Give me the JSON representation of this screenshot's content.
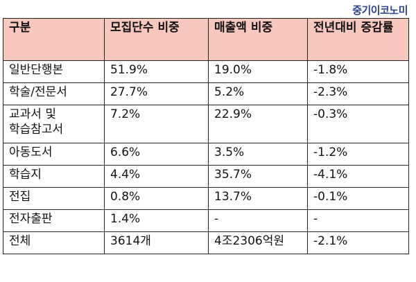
{
  "brand": "중기이코노미",
  "table": {
    "headers": [
      "구분",
      "모집단수 비중",
      "매출액 비중",
      "전년대비 증감률"
    ],
    "rows": [
      {
        "category": "일반단행본",
        "count_share": "51.9%",
        "sales_share": "19.0%",
        "yoy_change": "-1.8%"
      },
      {
        "category": "학술/전문서",
        "count_share": "27.7%",
        "sales_share": "5.2%",
        "yoy_change": "-2.3%"
      },
      {
        "category": "교과서 및 학습참고서",
        "count_share": "7.2%",
        "sales_share": "22.9%",
        "yoy_change": "-0.3%"
      },
      {
        "category": "아동도서",
        "count_share": "6.6%",
        "sales_share": "3.5%",
        "yoy_change": "-1.2%"
      },
      {
        "category": "학습지",
        "count_share": "4.4%",
        "sales_share": "35.7%",
        "yoy_change": "-4.1%"
      },
      {
        "category": "전집",
        "count_share": "0.8%",
        "sales_share": "13.7%",
        "yoy_change": "-0.1%"
      },
      {
        "category": "전자출판",
        "count_share": "1.4%",
        "sales_share": "-",
        "yoy_change": "-"
      },
      {
        "category": "전체",
        "count_share": "3614개",
        "sales_share": "4조2306억원",
        "yoy_change": "-2.1%"
      }
    ]
  }
}
